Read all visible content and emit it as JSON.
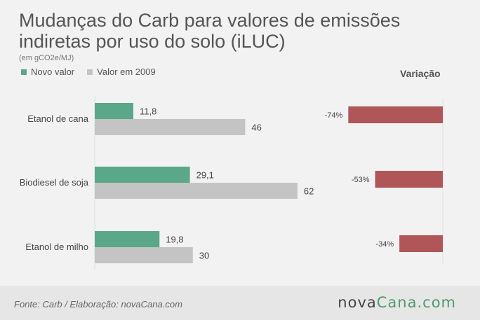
{
  "title": "Mudanças do Carb para valores de emissões indiretas por uso do solo (iLUC)",
  "subtitle": "(em gCO2e/MJ)",
  "variation_header": "Variação",
  "source": "Fonte: Carb / Elaboração: novaCana.com",
  "logo": {
    "part1": "nova",
    "part2": "Cana",
    "part3": ".com"
  },
  "colors": {
    "new": "#5ba78a",
    "old": "#c4c4c4",
    "variation": "#b05558",
    "background": "#f2f2f2",
    "footer": "#e6e6e6"
  },
  "chart_data": [
    {
      "type": "bar",
      "orientation": "horizontal",
      "categories": [
        "Etanol de cana",
        "Biodiesel de soja",
        "Etanol de milho"
      ],
      "series": [
        {
          "name": "Novo valor",
          "values": [
            11.8,
            29.1,
            19.8
          ],
          "labels": [
            "11,8",
            "29,1",
            "19,8"
          ]
        },
        {
          "name": "Valor em 2009",
          "values": [
            46,
            62,
            30
          ],
          "labels": [
            "46",
            "62",
            "30"
          ]
        }
      ],
      "legend": "top-left"
    },
    {
      "type": "bar",
      "orientation": "horizontal",
      "title": "Variação",
      "categories": [
        "Etanol de cana",
        "Biodiesel de soja",
        "Etanol de milho"
      ],
      "values": [
        -74,
        -53,
        -34
      ],
      "labels": [
        "-74%",
        "-53%",
        "-34%"
      ]
    }
  ]
}
